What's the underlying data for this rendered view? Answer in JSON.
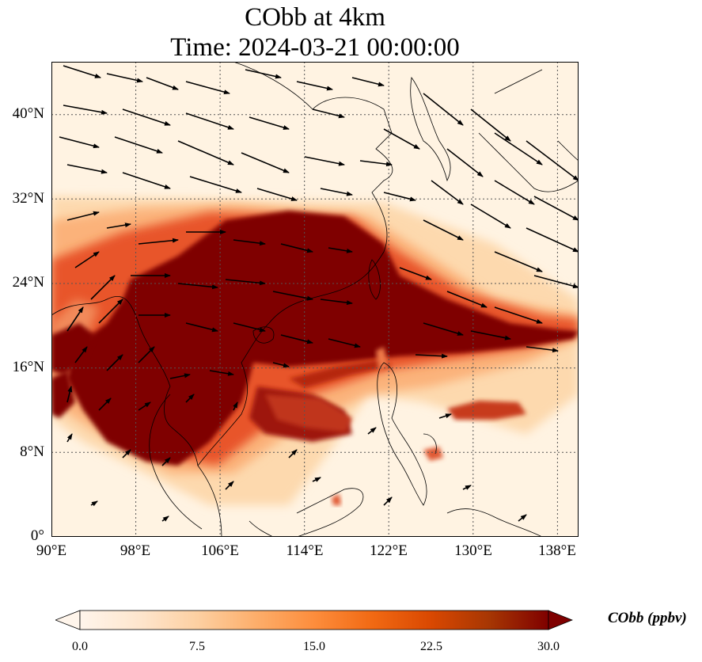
{
  "title": {
    "line1": "CObb at 4km",
    "line2": "Time: 2024-03-21 00:00:00"
  },
  "map": {
    "variable": "CObb",
    "level": "4km",
    "projection": "plate-carree",
    "lon_range": [
      90,
      140
    ],
    "lat_range": [
      0,
      45
    ],
    "gridlines": true,
    "lon_ticks": [
      "90°E",
      "98°E",
      "106°E",
      "114°E",
      "122°E",
      "130°E",
      "138°E"
    ],
    "lat_ticks": [
      "0°",
      "8°N",
      "16°N",
      "24°N",
      "32°N",
      "40°N"
    ],
    "overlay": "wind vectors (black arrows)",
    "coastlines": true
  },
  "colorbar": {
    "label": "CObb (ppbv)",
    "ticks": [
      "0.0",
      "7.5",
      "15.0",
      "22.5",
      "30.0"
    ],
    "range": [
      0,
      30
    ],
    "extend": "both",
    "colormap": [
      "#fff5eb",
      "#fee6ce",
      "#fdd0a2",
      "#fdae6b",
      "#fd8d3c",
      "#f16913",
      "#d94801",
      "#a63603",
      "#7f0000"
    ]
  },
  "colors": {
    "background": "#fff5eb",
    "plume": "#7f0000",
    "gridline": "#555555"
  }
}
